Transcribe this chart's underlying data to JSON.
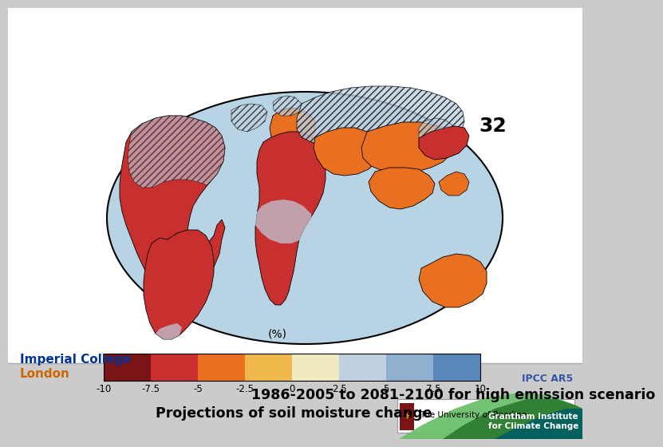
{
  "title_line1": "Projections of soil moisture change",
  "title_line2": "1986-2005 to 2081-2100 for high emission scenario",
  "ipcc_label": "IPCC AR5",
  "map_number": "32",
  "colorbar_label": "(%)",
  "colorbar_tick_labels": [
    "-10",
    "-7.5",
    "-5",
    "-2.5",
    "0",
    "2.5",
    "5",
    "7.5",
    "10"
  ],
  "colorbar_colors": [
    "#7B1414",
    "#C83030",
    "#E87020",
    "#F0B84A",
    "#F0EAC0",
    "#C0D0E0",
    "#90B0D0",
    "#5888BB",
    "#1A2E60"
  ],
  "slide_bg": "#CBCBCB",
  "header_bg": "#CBCBCB",
  "body_bg": "#FFFFFF",
  "imperial_blue": "#003399",
  "imperial_orange": "#CC6600",
  "title_color": "#000000",
  "title_fontsize": 12.5,
  "ipcc_color": "#3355AA",
  "sep_line_color": "#AAAAAA",
  "map_ocean": "#B8D4E4",
  "map_ellipse_edge": "#000000",
  "na_color": "#C83030",
  "sa_color": "#C83030",
  "europe_color": "#E87020",
  "africa_top_color": "#C83030",
  "africa_mid_color": "#C0D0E0",
  "africa_s_color": "#C83030",
  "asia_north_color": "#C0D0E0",
  "asia_mid_color": "#E87020",
  "asia_s_color": "#C83030",
  "australia_color": "#E87020",
  "footer_wave1": "#6DC06D",
  "footer_wave2": "#2E7D32",
  "footer_wave3": "#006060",
  "footer_text_color": "#FFFFFF",
  "footer_text": "Grantham Institute\nfor Climate Change"
}
